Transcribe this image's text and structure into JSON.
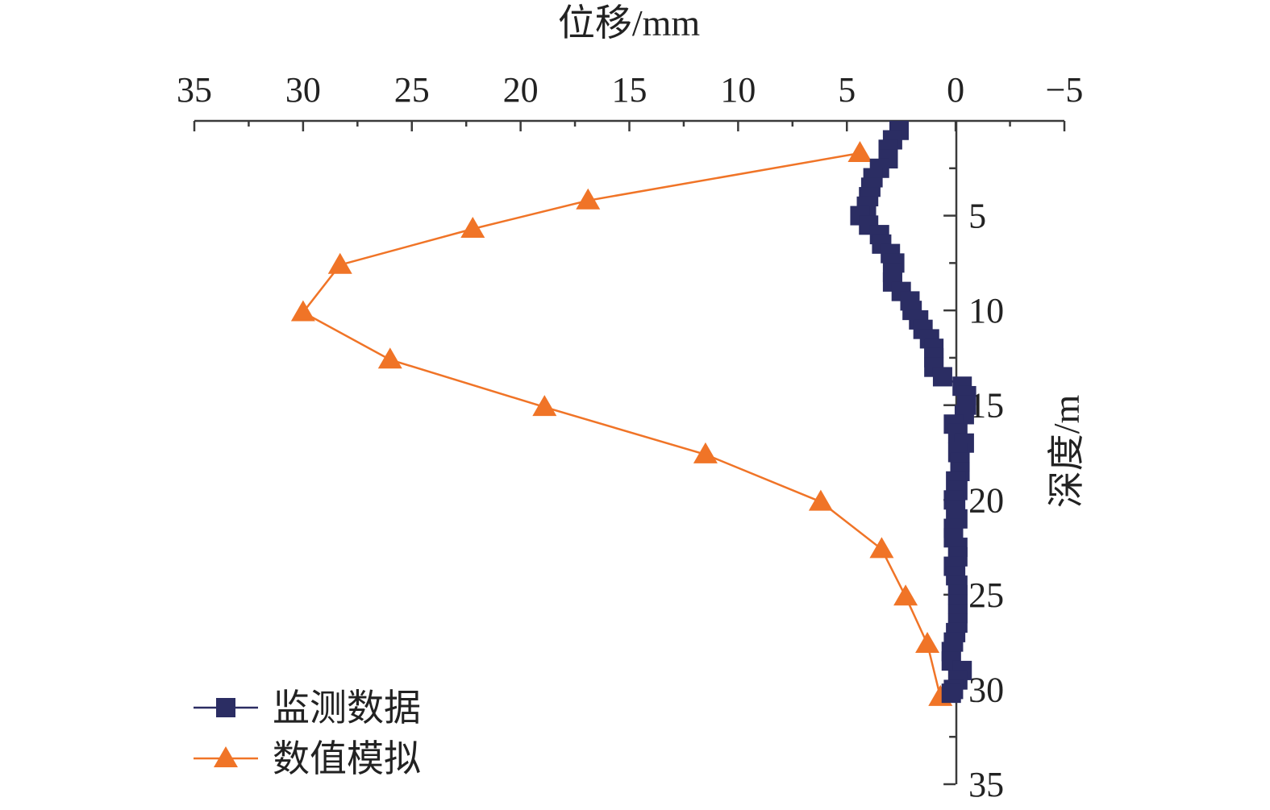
{
  "chart_data": {
    "type": "line",
    "xlabel": "位移/mm",
    "ylabel": "深度/m",
    "xlim": [
      35,
      -5
    ],
    "ylim": [
      0,
      35
    ],
    "x_axis_position": "top",
    "y_axis_crosses_x_at": 0,
    "y_axis_label_side": "right",
    "x_ticks": [
      35,
      30,
      25,
      20,
      15,
      10,
      5,
      0,
      -5
    ],
    "x_tick_labels": [
      "35",
      "30",
      "25",
      "20",
      "15",
      "10",
      "5",
      "0",
      "−5"
    ],
    "y_ticks": [
      5,
      10,
      15,
      20,
      25,
      30,
      35
    ],
    "y_tick_labels": [
      "5",
      "10",
      "15",
      "20",
      "25",
      "30",
      "35"
    ],
    "legend_position": "bottom-left",
    "grid": false,
    "series": [
      {
        "name": "监测数据",
        "color": "#2b2d63",
        "marker": "square",
        "points": [
          [
            2.6,
            0.5
          ],
          [
            2.9,
            1.0
          ],
          [
            3.1,
            1.5
          ],
          [
            3.1,
            2.0
          ],
          [
            3.5,
            2.5
          ],
          [
            3.8,
            3.0
          ],
          [
            3.9,
            3.5
          ],
          [
            4.0,
            4.0
          ],
          [
            4.1,
            4.5
          ],
          [
            4.4,
            5.0
          ],
          [
            4.0,
            5.5
          ],
          [
            3.5,
            6.0
          ],
          [
            3.4,
            6.5
          ],
          [
            3.0,
            7.0
          ],
          [
            2.8,
            7.5
          ],
          [
            2.9,
            8.0
          ],
          [
            2.9,
            8.5
          ],
          [
            2.5,
            9.0
          ],
          [
            2.1,
            9.5
          ],
          [
            2.0,
            10.0
          ],
          [
            1.7,
            10.5
          ],
          [
            1.5,
            11.0
          ],
          [
            1.2,
            11.5
          ],
          [
            1.0,
            12.0
          ],
          [
            1.0,
            12.5
          ],
          [
            1.0,
            13.0
          ],
          [
            0.6,
            13.5
          ],
          [
            -0.3,
            14.0
          ],
          [
            -0.5,
            14.5
          ],
          [
            -0.5,
            15.0
          ],
          [
            -0.4,
            15.5
          ],
          [
            0.1,
            16.0
          ],
          [
            -0.1,
            16.5
          ],
          [
            -0.4,
            17.0
          ],
          [
            -0.1,
            17.5
          ],
          [
            -0.2,
            18.0
          ],
          [
            -0.2,
            18.5
          ],
          [
            0.0,
            19.0
          ],
          [
            -0.1,
            19.5
          ],
          [
            0.1,
            20.0
          ],
          [
            0.0,
            20.5
          ],
          [
            -0.1,
            21.0
          ],
          [
            0.1,
            21.5
          ],
          [
            0.1,
            22.0
          ],
          [
            -0.1,
            22.5
          ],
          [
            -0.1,
            23.0
          ],
          [
            0.1,
            23.5
          ],
          [
            0.0,
            24.0
          ],
          [
            -0.1,
            24.5
          ],
          [
            -0.1,
            25.0
          ],
          [
            -0.1,
            25.5
          ],
          [
            -0.1,
            26.0
          ],
          [
            -0.1,
            26.5
          ],
          [
            0.0,
            27.0
          ],
          [
            0.1,
            27.5
          ],
          [
            0.2,
            28.0
          ],
          [
            0.2,
            28.5
          ],
          [
            -0.3,
            29.0
          ],
          [
            -0.1,
            29.5
          ],
          [
            0.1,
            30.0
          ],
          [
            0.2,
            30.2
          ]
        ]
      },
      {
        "name": "数值模拟",
        "color": "#f07427",
        "marker": "triangle",
        "points": [
          [
            4.4,
            1.7
          ],
          [
            16.9,
            4.2
          ],
          [
            22.2,
            5.7
          ],
          [
            28.3,
            7.6
          ],
          [
            30.0,
            10.1
          ],
          [
            26.0,
            12.6
          ],
          [
            18.9,
            15.1
          ],
          [
            11.5,
            17.6
          ],
          [
            6.2,
            20.1
          ],
          [
            3.4,
            22.6
          ],
          [
            2.3,
            25.1
          ],
          [
            1.3,
            27.6
          ],
          [
            0.7,
            30.4
          ]
        ]
      }
    ]
  }
}
